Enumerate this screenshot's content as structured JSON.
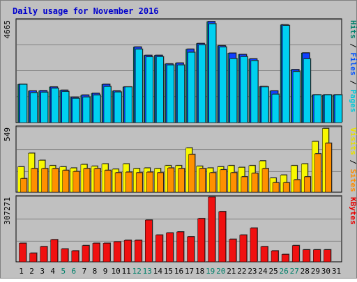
{
  "chart_data": {
    "type": "bar",
    "title": "Daily usage for November 2016",
    "categories": [
      "1",
      "2",
      "3",
      "4",
      "5",
      "6",
      "7",
      "8",
      "9",
      "10",
      "11",
      "12",
      "13",
      "14",
      "15",
      "16",
      "17",
      "18",
      "19",
      "20",
      "21",
      "22",
      "23",
      "24",
      "25",
      "26",
      "27",
      "28",
      "29",
      "30",
      "31"
    ],
    "weekend_days": [
      "5",
      "6",
      "12",
      "13",
      "19",
      "20",
      "26",
      "27"
    ],
    "panels": [
      {
        "id": "hits-files-pages",
        "max_label": "4665",
        "ymax": 4665,
        "side_label": [
          {
            "text": "Pages",
            "color": "#00c8d8"
          },
          {
            "text": " / ",
            "color": "#000000"
          },
          {
            "text": "Files",
            "color": "#0050ff"
          },
          {
            "text": " / ",
            "color": "#000000"
          },
          {
            "text": "Hits",
            "color": "#00806a"
          }
        ],
        "series": [
          {
            "name": "Hits",
            "color": "#008060",
            "values": [
              1740,
              1440,
              1450,
              1620,
              1470,
              1150,
              1250,
              1330,
              1740,
              1440,
              1620,
              3440,
              3060,
              3060,
              2670,
              2710,
              3340,
              3600,
              4600,
              3500,
              3160,
              3100,
              2900,
              1640,
              1440,
              4450,
              2410,
              3170,
              1260,
              1260,
              1260
            ]
          },
          {
            "name": "Files",
            "color": "#1040ff",
            "values": [
              1740,
              1440,
              1450,
              1620,
              1470,
              1150,
              1250,
              1330,
              1740,
              1440,
              1620,
              3440,
              3060,
              3060,
              2670,
              2710,
              3340,
              3600,
              4600,
              3500,
              3160,
              3100,
              2900,
              1640,
              1440,
              4450,
              2410,
              3170,
              1260,
              1260,
              1260
            ]
          },
          {
            "name": "Pages",
            "color": "#00d0f0",
            "values": [
              1740,
              1360,
              1380,
              1560,
              1410,
              1100,
              1160,
              1250,
              1640,
              1390,
              1620,
              3340,
              2990,
              3000,
              2620,
              2620,
              3200,
              3540,
              4500,
              3440,
              2910,
              3000,
              2820,
              1620,
              1290,
              4420,
              2320,
              2900,
              1260,
              1260,
              1260
            ]
          }
        ]
      },
      {
        "id": "visits-sites",
        "max_label": "549",
        "ymax": 549,
        "side_label": [
          {
            "text": "Sites",
            "color": "#ff8c00"
          },
          {
            "text": " / ",
            "color": "#000000"
          },
          {
            "text": "Visits",
            "color": "#e8e000"
          }
        ],
        "series": [
          {
            "name": "Visits",
            "color": "#f8f800",
            "values": [
              215,
              330,
              270,
              225,
              215,
              205,
              235,
              220,
              240,
              195,
              240,
              200,
              205,
              200,
              225,
              225,
              375,
              220,
              205,
              215,
              225,
              210,
              225,
              265,
              120,
              145,
              225,
              240,
              430,
              540,
              0
            ]
          },
          {
            "name": "Sites",
            "color": "#ff9000",
            "values": [
              115,
              200,
              200,
              200,
              185,
              175,
              200,
              200,
              185,
              165,
              170,
              165,
              170,
              165,
              205,
              200,
              320,
              200,
              165,
              190,
              165,
              130,
              160,
              200,
              80,
              80,
              105,
              130,
              325,
              415,
              0
            ]
          }
        ]
      },
      {
        "id": "kbytes",
        "max_label": "307271",
        "ymax": 307271,
        "side_label": [
          {
            "text": "KBytes",
            "color": "#e80000"
          }
        ],
        "series": [
          {
            "name": "KBytes",
            "color": "#f01010",
            "values": [
              88000,
              41000,
              72000,
              105000,
              61000,
              52000,
              77000,
              88000,
              88000,
              95000,
              102000,
              102000,
              198000,
              127000,
              137000,
              142000,
              119000,
              205000,
              307271,
              238000,
              107000,
              127000,
              160000,
              72000,
              52000,
              35000,
              77000,
              57000,
              57000,
              57000,
              0
            ]
          }
        ]
      }
    ]
  }
}
